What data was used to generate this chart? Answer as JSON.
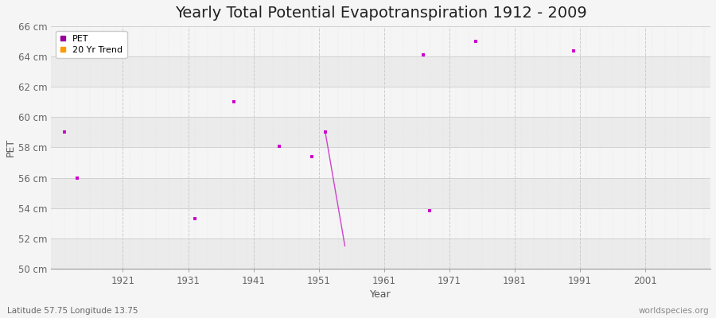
{
  "title": "Yearly Total Potential Evapotranspiration 1912 - 2009",
  "xlabel": "Year",
  "ylabel": "PET",
  "xlim": [
    1910,
    2011
  ],
  "ylim": [
    50,
    66
  ],
  "ytick_labels": [
    "50 cm",
    "52 cm",
    "54 cm",
    "56 cm",
    "58 cm",
    "60 cm",
    "62 cm",
    "64 cm",
    "66 cm"
  ],
  "ytick_values": [
    50,
    52,
    54,
    56,
    58,
    60,
    62,
    64,
    66
  ],
  "xtick_values": [
    1921,
    1931,
    1941,
    1951,
    1961,
    1971,
    1981,
    1991,
    2001
  ],
  "pet_data": [
    [
      1912,
      59.0
    ],
    [
      1914,
      56.0
    ],
    [
      1932,
      53.3
    ],
    [
      1938,
      61.0
    ],
    [
      1945,
      58.1
    ],
    [
      1950,
      57.4
    ],
    [
      1952,
      59.0
    ],
    [
      1967,
      64.1
    ],
    [
      1968,
      53.8
    ],
    [
      1975,
      65.0
    ],
    [
      1990,
      64.4
    ]
  ],
  "trend_line": [
    [
      1952,
      59.0
    ],
    [
      1955,
      51.5
    ]
  ],
  "pet_color": "#cc00cc",
  "trend_color": "#cc44cc",
  "legend_pet_color": "#990099",
  "legend_trend_color": "#ff9900",
  "bg_light": "#ebebeb",
  "bg_dark": "#f5f5f5",
  "grid_color_v": "#dddddd",
  "title_fontsize": 14,
  "axis_fontsize": 9,
  "tick_fontsize": 8.5,
  "footer_left": "Latitude 57.75 Longitude 13.75",
  "footer_right": "worldspecies.org"
}
